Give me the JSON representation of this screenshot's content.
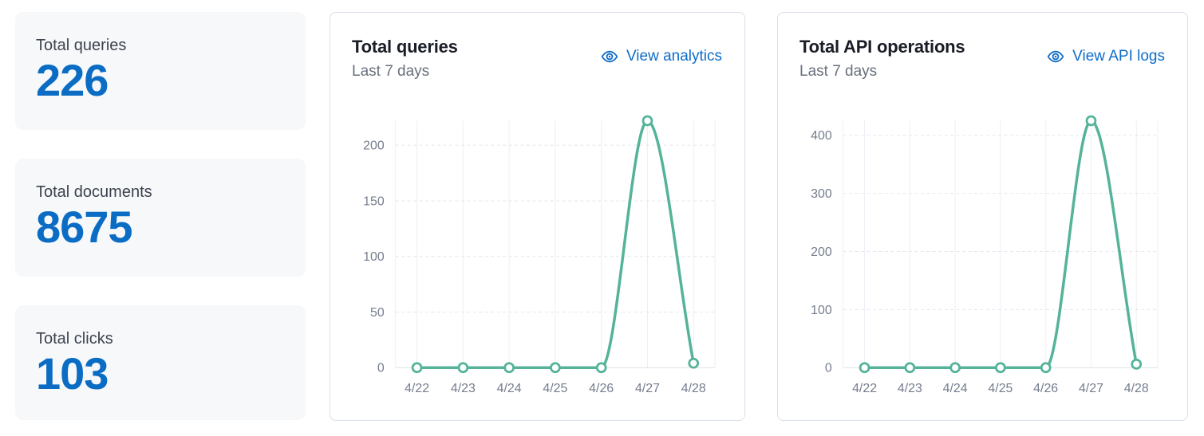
{
  "stats": [
    {
      "label": "Total queries",
      "value": "226"
    },
    {
      "label": "Total documents",
      "value": "8675"
    },
    {
      "label": "Total clicks",
      "value": "103"
    }
  ],
  "charts": [
    {
      "title": "Total queries",
      "subtitle": "Last 7 days",
      "link_label": "View analytics",
      "link_icon": "eye-icon"
    },
    {
      "title": "Total API operations",
      "subtitle": "Last 7 days",
      "link_label": "View API logs",
      "link_icon": "eye-icon"
    }
  ],
  "chart_data": [
    {
      "type": "line",
      "title": "Total queries",
      "subtitle": "Last 7 days",
      "x": [
        "4/22",
        "4/23",
        "4/24",
        "4/25",
        "4/26",
        "4/27",
        "4/28"
      ],
      "values": [
        0,
        0,
        0,
        0,
        0,
        222,
        4
      ],
      "y_ticks": [
        0,
        50,
        100,
        150,
        200
      ],
      "ylim": [
        0,
        222
      ],
      "xlabel": "",
      "ylabel": "",
      "grid": true,
      "legend": false,
      "line_color": "#54b399"
    },
    {
      "type": "line",
      "title": "Total API operations",
      "subtitle": "Last 7 days",
      "x": [
        "4/22",
        "4/23",
        "4/24",
        "4/25",
        "4/26",
        "4/27",
        "4/28"
      ],
      "values": [
        0,
        0,
        0,
        0,
        0,
        425,
        6
      ],
      "y_ticks": [
        0,
        100,
        200,
        300,
        400
      ],
      "ylim": [
        0,
        425
      ],
      "xlabel": "",
      "ylabel": "",
      "grid": true,
      "legend": false,
      "line_color": "#54b399"
    }
  ],
  "colors": {
    "stat_value_blue": "#0b6cc4",
    "link_blue": "#0d6dc8",
    "line_green": "#54b399",
    "marker_fill": "#ffffff",
    "title_ink": "#1a1d26",
    "subtitle_gray": "#69707d",
    "stat_label_gray": "#3d434e",
    "axis_label_gray": "#757d8d",
    "grid_vertical": "#edeff5",
    "grid_horizontal_dashed": "#e4e7ee",
    "zero_line": "#dde1e9",
    "stat_card_bg": "#f6f8fa",
    "card_border": "#d9dfe9"
  }
}
